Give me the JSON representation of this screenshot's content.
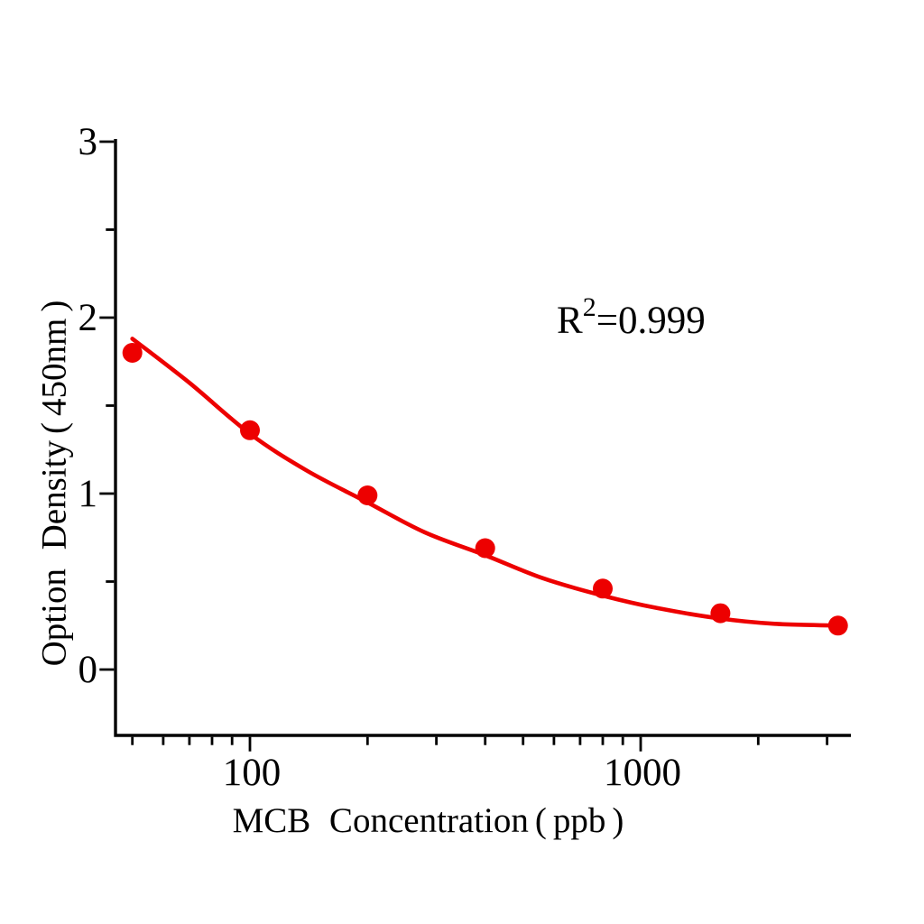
{
  "chart_data": {
    "type": "scatter",
    "title": "",
    "xlabel": "MCB Concentration（ppb）",
    "ylabel": "Option Density（450nm）",
    "x_scale": "log",
    "y_scale": "linear",
    "x_range": [
      45,
      3450
    ],
    "y_range": [
      -0.37,
      3.0
    ],
    "grid": false,
    "legend": "none",
    "x_axis": {
      "major_ticks": [
        {
          "value": 100,
          "label": "100"
        },
        {
          "value": 1000,
          "label": "1000"
        }
      ],
      "minor_ticks": [
        50,
        60,
        70,
        80,
        90,
        200,
        300,
        400,
        500,
        600,
        700,
        800,
        900,
        2000,
        3000
      ]
    },
    "y_axis": {
      "major_ticks": [
        {
          "value": 0,
          "label": "0"
        },
        {
          "value": 1,
          "label": "1"
        },
        {
          "value": 2,
          "label": "2"
        },
        {
          "value": 3,
          "label": "3"
        }
      ],
      "minor_ticks": [
        0.5,
        1.5,
        2.5
      ]
    },
    "series": [
      {
        "name": "standard-points",
        "type": "scatter",
        "marker": "circle",
        "color": "#ed0000",
        "points": [
          [
            50,
            1.8
          ],
          [
            100,
            1.36
          ],
          [
            200,
            0.99
          ],
          [
            400,
            0.69
          ],
          [
            800,
            0.46
          ],
          [
            1600,
            0.32
          ],
          [
            3200,
            0.25
          ]
        ]
      },
      {
        "name": "fit-curve",
        "type": "line",
        "color": "#ed0000",
        "points": [
          [
            50,
            1.88
          ],
          [
            70,
            1.63
          ],
          [
            100,
            1.34
          ],
          [
            140,
            1.13
          ],
          [
            200,
            0.95
          ],
          [
            280,
            0.78
          ],
          [
            400,
            0.65
          ],
          [
            560,
            0.52
          ],
          [
            800,
            0.42
          ],
          [
            1100,
            0.35
          ],
          [
            1600,
            0.29
          ],
          [
            2200,
            0.26
          ],
          [
            3200,
            0.25
          ]
        ]
      }
    ],
    "annotation": {
      "base": "R",
      "exponent": "2",
      "rest": "=0.999"
    }
  },
  "colors": {
    "series_red": "#ed0000",
    "axis_black": "#000000",
    "background": "#ffffff"
  }
}
